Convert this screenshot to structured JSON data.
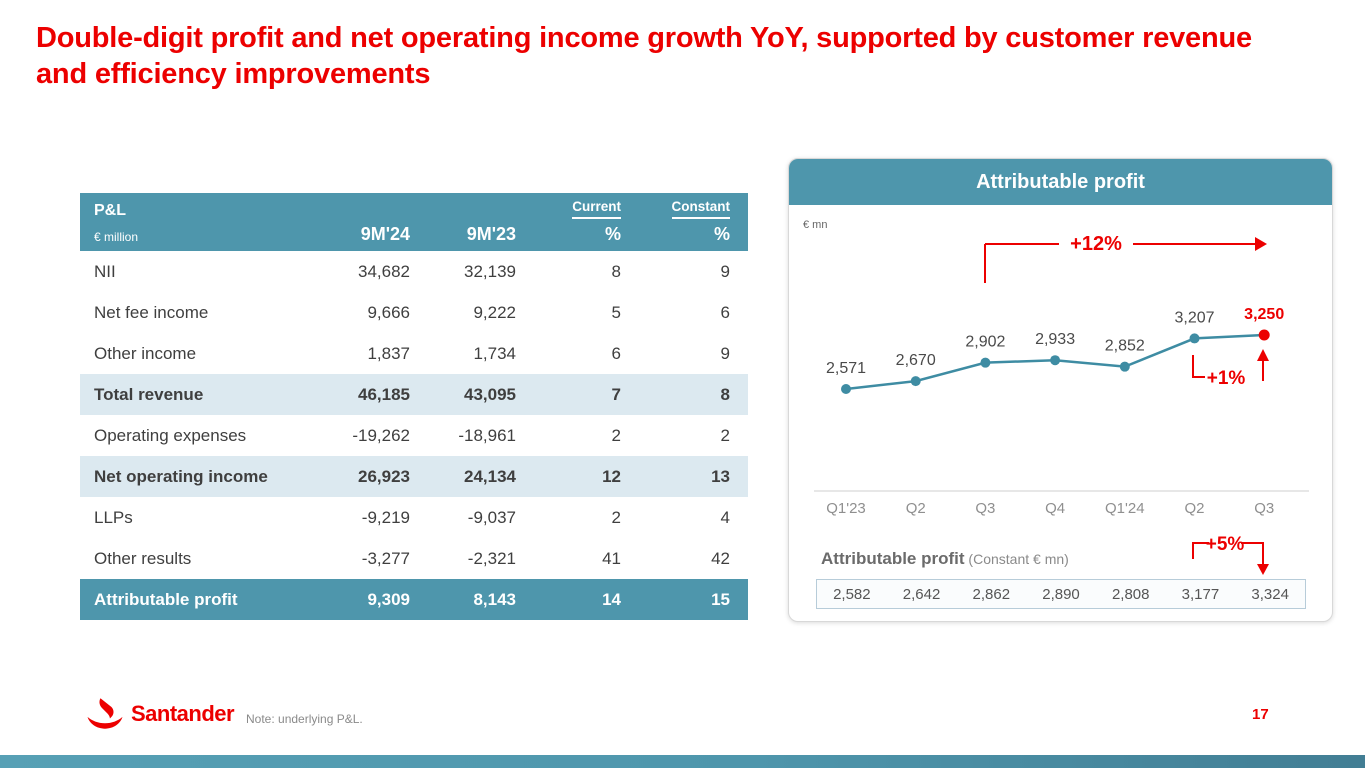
{
  "slide": {
    "title": "Double-digit profit and net operating income growth YoY, supported by customer revenue and efficiency improvements",
    "footnote": "Note: underlying P&L.",
    "page_number": "17",
    "brand": "Santander"
  },
  "colors": {
    "brand_red": "#EC0000",
    "teal": "#4E96AC",
    "row_highlight": "#DCE9F0",
    "line": "#3E8CA3"
  },
  "pnl_table": {
    "title": "P&L",
    "unit": "€ million",
    "col_9m24": "9M'24",
    "col_9m23": "9M'23",
    "col_current": "Current",
    "col_constant": "Constant",
    "pct": "%",
    "rows": [
      {
        "label": "NII",
        "v24": "34,682",
        "v23": "32,139",
        "cur": "8",
        "con": "9",
        "style": "normal"
      },
      {
        "label": "Net fee income",
        "v24": "9,666",
        "v23": "9,222",
        "cur": "5",
        "con": "6",
        "style": "normal"
      },
      {
        "label": "Other income",
        "v24": "1,837",
        "v23": "1,734",
        "cur": "6",
        "con": "9",
        "style": "normal"
      },
      {
        "label": "Total revenue",
        "v24": "46,185",
        "v23": "43,095",
        "cur": "7",
        "con": "8",
        "style": "subtotal"
      },
      {
        "label": "Operating expenses",
        "v24": "-19,262",
        "v23": "-18,961",
        "cur": "2",
        "con": "2",
        "style": "normal"
      },
      {
        "label": "Net operating income",
        "v24": "26,923",
        "v23": "24,134",
        "cur": "12",
        "con": "13",
        "style": "subtotal"
      },
      {
        "label": "LLPs",
        "v24": "-9,219",
        "v23": "-9,037",
        "cur": "2",
        "con": "4",
        "style": "normal"
      },
      {
        "label": "Other results",
        "v24": "-3,277",
        "v23": "-2,321",
        "cur": "41",
        "con": "42",
        "style": "normal"
      },
      {
        "label": "Attributable profit",
        "v24": "9,309",
        "v23": "8,143",
        "cur": "14",
        "con": "15",
        "style": "total"
      }
    ]
  },
  "chart_data": {
    "type": "line",
    "title": "Attributable profit",
    "unit": "€ mn",
    "categories": [
      "Q1'23",
      "Q2",
      "Q3",
      "Q4",
      "Q1'24",
      "Q2",
      "Q3"
    ],
    "values": [
      2571,
      2670,
      2902,
      2933,
      2852,
      3207,
      3250
    ],
    "labels": [
      "2,571",
      "2,670",
      "2,902",
      "2,933",
      "2,852",
      "3,207",
      "3,250"
    ],
    "ylim": [
      2500,
      3350
    ],
    "grid": false,
    "annotations": {
      "yoy": "+12%",
      "qoq": "+1%",
      "constant": "+5%"
    },
    "constant_series": {
      "label": "Attributable profit",
      "sublabel": " (Constant € mn)",
      "values": [
        "2,582",
        "2,642",
        "2,862",
        "2,890",
        "2,808",
        "3,177",
        "3,324"
      ]
    }
  }
}
